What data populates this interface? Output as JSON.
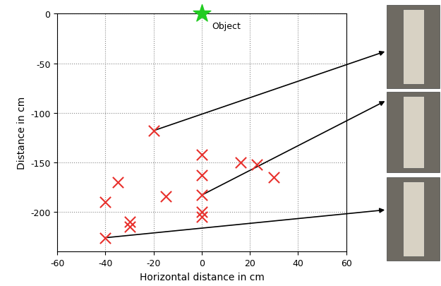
{
  "chart_data": {
    "type": "scatter",
    "x_label": "Horizontal distance in cm",
    "y_label": "Distance in cm",
    "series": [
      {
        "name": "Object",
        "color": "#22cc22",
        "marker": "star",
        "x": [
          0
        ],
        "y": [
          0
        ]
      },
      {
        "color": "#e8302c",
        "marker": "x",
        "x": [
          -20,
          0,
          0,
          0,
          0,
          0,
          16,
          23,
          30,
          -35,
          -15,
          -40,
          -30,
          -30,
          -40
        ],
        "y": [
          -118,
          -142,
          -163,
          -183,
          -200,
          -205,
          -150,
          -152,
          -165,
          -170,
          -184,
          -190,
          -210,
          -215,
          -226
        ]
      }
    ],
    "photos": [
      {
        "x": -20,
        "y": -118
      },
      {
        "x": 0,
        "y": -183
      },
      {
        "x": -40,
        "y": -226
      }
    ],
    "xlim": [
      -60,
      60
    ],
    "xticks": [
      -60,
      -40,
      -20,
      0,
      20,
      40,
      60
    ],
    "ylim": [
      -240,
      0
    ],
    "yticks": [
      -200,
      -150,
      -100,
      -50,
      0
    ],
    "grid": true
  }
}
